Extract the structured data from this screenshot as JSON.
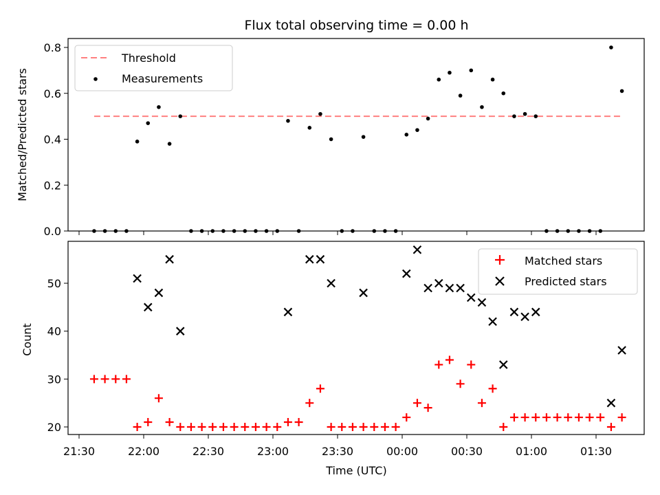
{
  "chart_data": [
    {
      "type": "scatter",
      "title": "Flux total observing time = 0.00 h",
      "xlabel": "",
      "ylabel": "Matched/Predicted stars",
      "ylim": [
        0,
        0.85
      ],
      "yticks": [
        "0.0",
        "0.2",
        "0.4",
        "0.6",
        "0.8"
      ],
      "legend": {
        "position": "top-left",
        "entries": [
          "Threshold",
          "Measurements"
        ]
      },
      "threshold": {
        "name": "Threshold",
        "value": 0.5,
        "x_start": "21:37",
        "x_end": "01:42",
        "color": "#ff7f7f"
      },
      "series": [
        {
          "name": "Measurements",
          "marker": "dot",
          "color": "#000000",
          "x": [
            "21:37",
            "21:42",
            "21:47",
            "21:52",
            "21:57",
            "22:02",
            "22:07",
            "22:12",
            "22:17",
            "22:22",
            "22:27",
            "22:32",
            "22:37",
            "22:42",
            "22:47",
            "22:52",
            "22:57",
            "23:02",
            "23:07",
            "23:12",
            "23:17",
            "23:22",
            "23:27",
            "23:32",
            "23:37",
            "23:42",
            "23:47",
            "23:52",
            "23:57",
            "00:02",
            "00:07",
            "00:12",
            "00:17",
            "00:22",
            "00:27",
            "00:32",
            "00:37",
            "00:42",
            "00:47",
            "00:52",
            "00:57",
            "01:02",
            "01:07",
            "01:12",
            "01:17",
            "01:22",
            "01:27",
            "01:32",
            "01:37",
            "01:42"
          ],
          "y": [
            0.0,
            0.0,
            0.0,
            0.0,
            0.39,
            0.47,
            0.54,
            0.38,
            0.5,
            0.0,
            0.0,
            0.0,
            0.0,
            0.0,
            0.0,
            0.0,
            0.0,
            0.0,
            0.48,
            0.0,
            0.45,
            0.51,
            0.4,
            0.0,
            0.0,
            0.41,
            0.0,
            0.0,
            0.0,
            0.42,
            0.44,
            0.49,
            0.66,
            0.69,
            0.59,
            0.7,
            0.54,
            0.66,
            0.6,
            0.5,
            0.51,
            0.5,
            0.0,
            0.0,
            0.0,
            0.0,
            0.0,
            0.0,
            0.8,
            0.61
          ]
        }
      ]
    },
    {
      "type": "scatter",
      "title": "",
      "xlabel": "Time (UTC)",
      "ylabel": "Count",
      "ylim": [
        18,
        58
      ],
      "yticks": [
        "20",
        "30",
        "40",
        "50"
      ],
      "xticks": [
        "21:30",
        "22:00",
        "22:30",
        "23:00",
        "23:30",
        "00:00",
        "00:30",
        "01:00",
        "01:30"
      ],
      "legend": {
        "position": "top-right",
        "entries": [
          "Matched stars",
          "Predicted stars"
        ]
      },
      "series": [
        {
          "name": "Matched stars",
          "marker": "plus",
          "color": "#ff0000",
          "x": [
            "21:37",
            "21:42",
            "21:47",
            "21:52",
            "21:57",
            "22:02",
            "22:07",
            "22:12",
            "22:17",
            "22:22",
            "22:27",
            "22:32",
            "22:37",
            "22:42",
            "22:47",
            "22:52",
            "22:57",
            "23:02",
            "23:07",
            "23:12",
            "23:17",
            "23:22",
            "23:27",
            "23:32",
            "23:37",
            "23:42",
            "23:47",
            "23:52",
            "23:57",
            "00:02",
            "00:07",
            "00:12",
            "00:17",
            "00:22",
            "00:27",
            "00:32",
            "00:37",
            "00:42",
            "00:47",
            "00:52",
            "00:57",
            "01:02",
            "01:07",
            "01:12",
            "01:17",
            "01:22",
            "01:27",
            "01:32",
            "01:37",
            "01:42"
          ],
          "y": [
            30,
            30,
            30,
            30,
            20,
            21,
            26,
            21,
            20,
            20,
            20,
            20,
            20,
            20,
            20,
            20,
            20,
            20,
            21,
            21,
            25,
            28,
            20,
            20,
            20,
            20,
            20,
            20,
            20,
            22,
            25,
            24,
            33,
            34,
            29,
            33,
            25,
            28,
            20,
            22,
            22,
            22,
            22,
            22,
            22,
            22,
            22,
            22,
            20,
            22
          ]
        },
        {
          "name": "Predicted stars",
          "marker": "x",
          "color": "#000000",
          "x": [
            "21:57",
            "22:02",
            "22:07",
            "22:12",
            "22:17",
            "23:07",
            "23:17",
            "23:22",
            "23:27",
            "23:42",
            "00:02",
            "00:07",
            "00:12",
            "00:17",
            "00:22",
            "00:27",
            "00:32",
            "00:37",
            "00:42",
            "00:47",
            "00:52",
            "00:57",
            "01:02",
            "01:37",
            "01:42"
          ],
          "y": [
            51,
            45,
            48,
            55,
            40,
            44,
            55,
            55,
            50,
            48,
            52,
            57,
            49,
            50,
            49,
            49,
            47,
            46,
            42,
            33,
            44,
            43,
            44,
            25,
            36
          ]
        }
      ]
    }
  ]
}
